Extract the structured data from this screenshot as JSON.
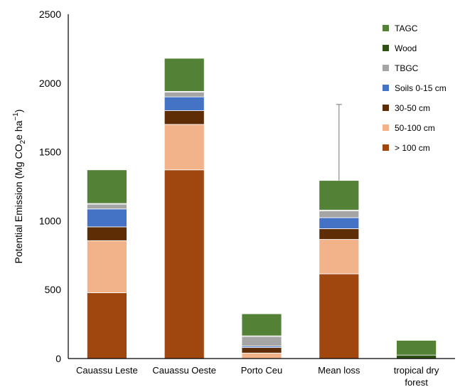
{
  "chart_data": {
    "type": "bar",
    "stacked": true,
    "ylabel": "Potential Emission (Mg CO",
    "ylabel_sub": "2",
    "ylabel_mid": "e ha",
    "ylabel_sup": "−1",
    "ylabel_end": ")",
    "ylim": [
      0,
      2500
    ],
    "yticks": [
      0,
      500,
      1000,
      1500,
      2000,
      2500
    ],
    "grid": false,
    "legend_position": "top-right",
    "categories": [
      [
        "Cauassu Leste"
      ],
      [
        "Cauassu Oeste"
      ],
      [
        "Porto Ceu"
      ],
      [
        "Mean loss"
      ],
      [
        "tropical dry",
        "forest"
      ]
    ],
    "series": [
      {
        "name": "> 100 cm",
        "color": "#a0460f",
        "values": [
          478,
          1370,
          0,
          615,
          0
        ]
      },
      {
        "name": "50-100 cm",
        "color": "#f2b28a",
        "values": [
          378,
          330,
          40,
          250,
          0
        ]
      },
      {
        "name": "30-50 cm",
        "color": "#5e2d06",
        "values": [
          100,
          100,
          40,
          78,
          0
        ]
      },
      {
        "name": "Soils  0-15 cm",
        "color": "#4472c4",
        "values": [
          130,
          100,
          10,
          80,
          0
        ]
      },
      {
        "name": "TBGC",
        "color": "#a5a5a5",
        "values": [
          35,
          35,
          70,
          50,
          0
        ]
      },
      {
        "name": "Wood",
        "color": "#2e5016",
        "values": [
          5,
          5,
          5,
          5,
          25
        ]
      },
      {
        "name": "TAGC",
        "color": "#538135",
        "values": [
          244,
          240,
          160,
          215,
          107
        ]
      }
    ],
    "error_bars": [
      {
        "category_index": 3,
        "value": 1293,
        "upper": 1845
      }
    ]
  }
}
